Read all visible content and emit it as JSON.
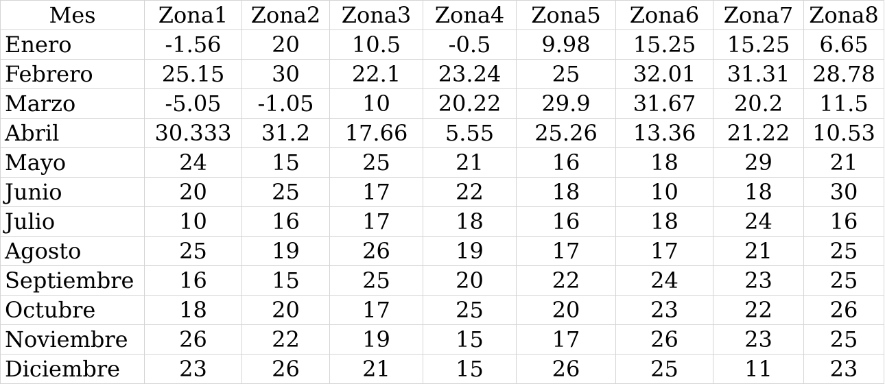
{
  "sheet": {
    "headers": [
      "Mes",
      "Zona1",
      "Zona2",
      "Zona3",
      "Zona4",
      "Zona5",
      "Zona6",
      "Zona7",
      "Zona8"
    ],
    "rows": [
      [
        "Enero",
        "-1.56",
        "20",
        "10.5",
        "-0.5",
        "9.98",
        "15.25",
        "15.25",
        "6.65"
      ],
      [
        "Febrero",
        "25.15",
        "30",
        "22.1",
        "23.24",
        "25",
        "32.01",
        "31.31",
        "28.78"
      ],
      [
        "Marzo",
        "-5.05",
        "-1.05",
        "10",
        "20.22",
        "29.9",
        "31.67",
        "20.2",
        "11.5"
      ],
      [
        "Abril",
        "30.333",
        "31.2",
        "17.66",
        "5.55",
        "25.26",
        "13.36",
        "21.22",
        "10.53"
      ],
      [
        "Mayo",
        "24",
        "15",
        "25",
        "21",
        "16",
        "18",
        "29",
        "21"
      ],
      [
        "Junio",
        "20",
        "25",
        "17",
        "22",
        "18",
        "10",
        "18",
        "30"
      ],
      [
        "Julio",
        "10",
        "16",
        "17",
        "18",
        "16",
        "18",
        "24",
        "16"
      ],
      [
        "Agosto",
        "25",
        "19",
        "26",
        "19",
        "17",
        "17",
        "21",
        "25"
      ],
      [
        "Septiembre",
        "16",
        "15",
        "25",
        "20",
        "22",
        "24",
        "23",
        "25"
      ],
      [
        "Octubre",
        "18",
        "20",
        "17",
        "25",
        "20",
        "23",
        "22",
        "26"
      ],
      [
        "Noviembre",
        "26",
        "22",
        "19",
        "15",
        "17",
        "26",
        "23",
        "25"
      ],
      [
        "Diciembre",
        "23",
        "26",
        "21",
        "15",
        "26",
        "25",
        "11",
        "23"
      ]
    ]
  },
  "colors": {
    "gridline": "#d4d4d4",
    "text": "#000000",
    "background": "#ffffff"
  }
}
